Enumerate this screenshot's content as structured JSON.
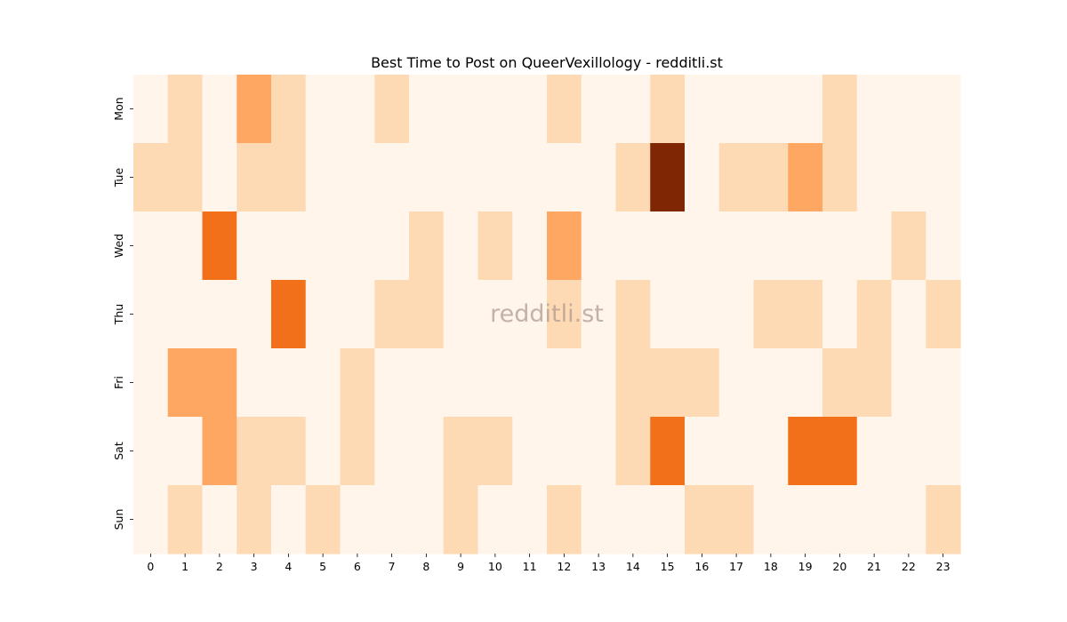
{
  "chart_data": {
    "type": "heatmap",
    "title": "Best Time to Post on QueerVexillology - redditli.st",
    "watermark": "redditli.st",
    "x_labels": [
      "0",
      "1",
      "2",
      "3",
      "4",
      "5",
      "6",
      "7",
      "8",
      "9",
      "10",
      "11",
      "12",
      "13",
      "14",
      "15",
      "16",
      "17",
      "18",
      "19",
      "20",
      "21",
      "22",
      "23"
    ],
    "y_labels": [
      "Mon",
      "Tue",
      "Wed",
      "Thu",
      "Fri",
      "Sat",
      "Sun"
    ],
    "colormap": "Oranges",
    "value_range": [
      0,
      4
    ],
    "colorbar": false,
    "grid": false,
    "color_scale": [
      "#fff5eb",
      "#fdd9b4",
      "#fda762",
      "#f3701b",
      "#7f2704"
    ],
    "values": [
      [
        0,
        1,
        0,
        2,
        1,
        0,
        0,
        1,
        0,
        0,
        0,
        0,
        1,
        0,
        0,
        1,
        0,
        0,
        0,
        0,
        1,
        0,
        0,
        0
      ],
      [
        1,
        1,
        0,
        1,
        1,
        0,
        0,
        0,
        0,
        0,
        0,
        0,
        0,
        0,
        1,
        4,
        0,
        1,
        1,
        2,
        1,
        0,
        0,
        0
      ],
      [
        0,
        0,
        3,
        0,
        0,
        0,
        0,
        0,
        1,
        0,
        1,
        0,
        2,
        0,
        0,
        0,
        0,
        0,
        0,
        0,
        0,
        0,
        1,
        0
      ],
      [
        0,
        0,
        0,
        0,
        3,
        0,
        0,
        1,
        1,
        0,
        0,
        0,
        1,
        0,
        1,
        0,
        0,
        0,
        1,
        1,
        0,
        1,
        0,
        1
      ],
      [
        0,
        2,
        2,
        0,
        0,
        0,
        1,
        0,
        0,
        0,
        0,
        0,
        0,
        0,
        1,
        1,
        1,
        0,
        0,
        0,
        1,
        1,
        0,
        0
      ],
      [
        0,
        0,
        2,
        1,
        1,
        0,
        1,
        0,
        0,
        1,
        1,
        0,
        0,
        0,
        1,
        3,
        0,
        0,
        0,
        3,
        3,
        0,
        0,
        0
      ],
      [
        0,
        1,
        0,
        1,
        0,
        1,
        0,
        0,
        0,
        1,
        0,
        0,
        1,
        0,
        0,
        0,
        1,
        1,
        0,
        0,
        0,
        0,
        0,
        1
      ]
    ]
  }
}
